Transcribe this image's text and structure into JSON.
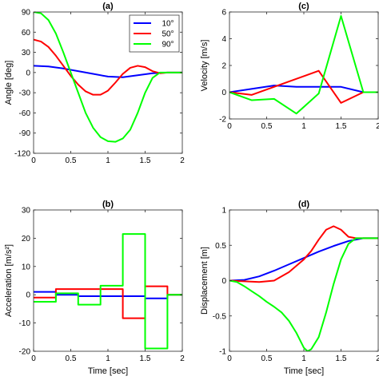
{
  "chart_data": [
    {
      "id": "a",
      "type": "line",
      "title": "(a)",
      "xlabel": "",
      "ylabel": "Angle [deg]",
      "xlim": [
        0,
        2
      ],
      "ylim": [
        -120,
        90
      ],
      "xticks": [
        0,
        0.5,
        1,
        1.5,
        2
      ],
      "yticks": [
        -120,
        -90,
        -60,
        -30,
        0,
        30,
        60,
        90
      ],
      "xtick_labels": [
        "0",
        "0.5",
        "1",
        "1.5",
        "2"
      ],
      "ytick_labels": [
        "-120",
        "-90",
        "-60",
        "-30",
        "0",
        "30",
        "60",
        "90"
      ],
      "legend": {
        "position": "top-right",
        "entries": [
          "10°",
          "50°",
          "90°"
        ]
      },
      "series": [
        {
          "name": "10°",
          "color": "#0000ff",
          "x": [
            0,
            0.2,
            0.4,
            0.6,
            0.8,
            1.0,
            1.2,
            1.4,
            1.6,
            1.8,
            2.0
          ],
          "y": [
            10,
            9,
            6,
            2,
            -2,
            -6,
            -7,
            -4,
            -1,
            0,
            0
          ]
        },
        {
          "name": "50°",
          "color": "#ff0000",
          "x": [
            0,
            0.1,
            0.2,
            0.3,
            0.4,
            0.5,
            0.6,
            0.7,
            0.8,
            0.9,
            1.0,
            1.1,
            1.2,
            1.3,
            1.4,
            1.5,
            1.6,
            1.7,
            1.8,
            2.0
          ],
          "y": [
            49,
            46,
            38,
            25,
            10,
            -5,
            -18,
            -28,
            -33,
            -33,
            -27,
            -15,
            -2,
            7,
            10,
            8,
            2,
            -1,
            0,
            0
          ]
        },
        {
          "name": "90°",
          "color": "#00ff00",
          "x": [
            0,
            0.1,
            0.2,
            0.3,
            0.4,
            0.5,
            0.6,
            0.7,
            0.8,
            0.9,
            1.0,
            1.1,
            1.2,
            1.3,
            1.4,
            1.5,
            1.6,
            1.7,
            1.8,
            2.0
          ],
          "y": [
            90,
            88,
            78,
            58,
            30,
            0,
            -30,
            -60,
            -82,
            -96,
            -102,
            -103,
            -98,
            -85,
            -60,
            -30,
            -8,
            0,
            0,
            0
          ]
        }
      ]
    },
    {
      "id": "c",
      "type": "line",
      "title": "(c)",
      "xlabel": "",
      "ylabel": "Velocity [m/s]",
      "xlim": [
        0,
        2
      ],
      "ylim": [
        -2,
        6
      ],
      "xticks": [
        0,
        0.5,
        1,
        1.5,
        2
      ],
      "yticks": [
        -2,
        0,
        2,
        4,
        6
      ],
      "xtick_labels": [
        "0",
        "0.5",
        "1",
        "1.5",
        "2"
      ],
      "ytick_labels": [
        "-2",
        "0",
        "2",
        "4",
        "6"
      ],
      "series": [
        {
          "name": "10°",
          "color": "#0000ff",
          "x": [
            0,
            0.6,
            0.9,
            1.2,
            1.5,
            1.8,
            2.0
          ],
          "y": [
            0,
            0.5,
            0.4,
            0.4,
            0.4,
            0,
            0
          ]
        },
        {
          "name": "50°",
          "color": "#ff0000",
          "x": [
            0,
            0.3,
            1.2,
            1.5,
            1.8,
            2.0
          ],
          "y": [
            0,
            -0.2,
            1.6,
            -0.8,
            0,
            0
          ]
        },
        {
          "name": "90°",
          "color": "#00ff00",
          "x": [
            0,
            0.3,
            0.6,
            0.9,
            1.2,
            1.5,
            1.8,
            2.0
          ],
          "y": [
            0,
            -0.6,
            -0.5,
            -1.6,
            -0.1,
            5.7,
            0,
            0
          ]
        }
      ]
    },
    {
      "id": "b",
      "type": "line",
      "title": "(b)",
      "xlabel": "Time [sec]",
      "ylabel": "Acceleration [m/s²]",
      "xlim": [
        0,
        2
      ],
      "ylim": [
        -20,
        30
      ],
      "xticks": [
        0,
        0.5,
        1,
        1.5,
        2
      ],
      "yticks": [
        -20,
        -10,
        0,
        10,
        20,
        30
      ],
      "xtick_labels": [
        "0",
        "0.5",
        "1",
        "1.5",
        "2"
      ],
      "ytick_labels": [
        "-20",
        "-10",
        "0",
        "10",
        "20",
        "30"
      ],
      "series": [
        {
          "name": "10°",
          "color": "#0000ff",
          "x": [
            0,
            0.3,
            0.3,
            0.6,
            0.6,
            1.5,
            1.5,
            1.8,
            1.8,
            2.0
          ],
          "y": [
            1,
            1,
            0,
            0,
            -0.5,
            -0.5,
            -1.3,
            -1.3,
            0,
            0
          ]
        },
        {
          "name": "50°",
          "color": "#ff0000",
          "x": [
            0,
            0.3,
            0.3,
            1.2,
            1.2,
            1.5,
            1.5,
            1.8,
            1.8,
            2.0
          ],
          "y": [
            -1,
            -1,
            2,
            2,
            -8.3,
            -8.3,
            3,
            3,
            0,
            0
          ]
        },
        {
          "name": "90°",
          "color": "#00ff00",
          "x": [
            0,
            0.3,
            0.3,
            0.6,
            0.6,
            0.9,
            0.9,
            1.2,
            1.2,
            1.5,
            1.5,
            1.8,
            1.8,
            2.0
          ],
          "y": [
            -2.5,
            -2.5,
            0.5,
            0.5,
            -3.5,
            -3.5,
            3.2,
            3.2,
            21.5,
            21.5,
            -19,
            -19,
            0,
            0
          ]
        }
      ]
    },
    {
      "id": "d",
      "type": "line",
      "title": "(d)",
      "xlabel": "Time [sec]",
      "ylabel": "Displacement [m]",
      "xlim": [
        0,
        2
      ],
      "ylim": [
        -1,
        1
      ],
      "xticks": [
        0,
        0.5,
        1,
        1.5,
        2
      ],
      "yticks": [
        -1,
        -0.5,
        0,
        0.5,
        1
      ],
      "xtick_labels": [
        "0",
        "0.5",
        "1",
        "1.5",
        "2"
      ],
      "ytick_labels": [
        "-1",
        "-0.5",
        "0",
        "0.5",
        "1"
      ],
      "series": [
        {
          "name": "10°",
          "color": "#0000ff",
          "x": [
            0,
            0.2,
            0.4,
            0.6,
            0.8,
            1.0,
            1.2,
            1.4,
            1.6,
            1.8,
            2.0
          ],
          "y": [
            0,
            0.01,
            0.06,
            0.14,
            0.23,
            0.32,
            0.41,
            0.49,
            0.56,
            0.6,
            0.6
          ]
        },
        {
          "name": "50°",
          "color": "#ff0000",
          "x": [
            0,
            0.2,
            0.4,
            0.6,
            0.8,
            1.0,
            1.1,
            1.2,
            1.3,
            1.4,
            1.5,
            1.6,
            1.7,
            1.8,
            2.0
          ],
          "y": [
            0,
            -0.01,
            -0.02,
            0.0,
            0.12,
            0.3,
            0.42,
            0.58,
            0.72,
            0.77,
            0.72,
            0.62,
            0.6,
            0.6,
            0.6
          ]
        },
        {
          "name": "90°",
          "color": "#00ff00",
          "x": [
            0,
            0.1,
            0.2,
            0.3,
            0.4,
            0.5,
            0.6,
            0.7,
            0.8,
            0.9,
            1.0,
            1.05,
            1.1,
            1.2,
            1.3,
            1.4,
            1.5,
            1.6,
            1.7,
            1.8,
            2.0
          ],
          "y": [
            0,
            -0.02,
            -0.08,
            -0.15,
            -0.22,
            -0.3,
            -0.37,
            -0.45,
            -0.57,
            -0.74,
            -0.95,
            -1.0,
            -0.97,
            -0.8,
            -0.45,
            -0.05,
            0.3,
            0.52,
            0.6,
            0.6,
            0.6
          ]
        }
      ]
    }
  ]
}
